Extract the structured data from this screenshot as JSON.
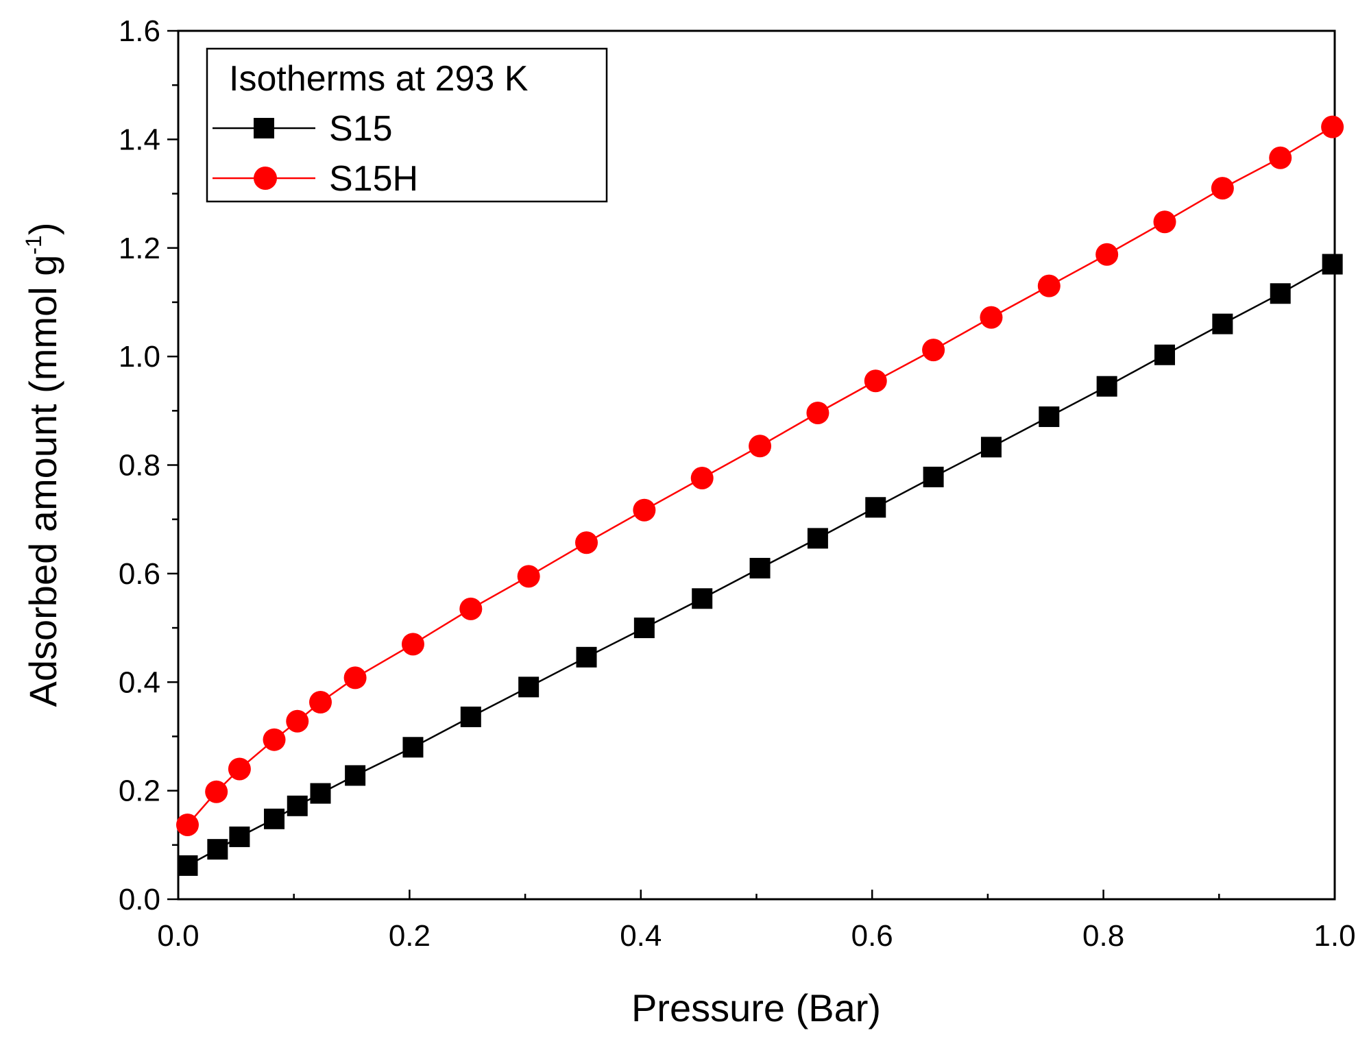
{
  "chart_data": {
    "type": "line",
    "xlabel": "Pressure (Bar)",
    "ylabel_main": "Adsorbed amount (mmol g",
    "ylabel_sup": "-1",
    "ylabel_close": ")",
    "xlim": [
      0.0,
      1.0
    ],
    "ylim": [
      0.0,
      1.6
    ],
    "xticks": [
      "0.0",
      "0.2",
      "0.4",
      "0.6",
      "0.8",
      "1.0"
    ],
    "yticks": [
      "0.0",
      "0.2",
      "0.4",
      "0.6",
      "0.8",
      "1.0",
      "1.2",
      "1.4",
      "1.6"
    ],
    "legend": {
      "title": "Isotherms at 293 K",
      "position": "top-left"
    },
    "series": [
      {
        "name": "S15",
        "color": "#000000",
        "marker": "square",
        "x": [
          0.008,
          0.034,
          0.053,
          0.083,
          0.103,
          0.123,
          0.153,
          0.203,
          0.253,
          0.303,
          0.353,
          0.403,
          0.453,
          0.503,
          0.553,
          0.603,
          0.653,
          0.703,
          0.753,
          0.803,
          0.853,
          0.903,
          0.953,
          0.998
        ],
        "y": [
          0.062,
          0.092,
          0.115,
          0.148,
          0.172,
          0.195,
          0.228,
          0.28,
          0.336,
          0.391,
          0.446,
          0.5,
          0.554,
          0.61,
          0.665,
          0.722,
          0.778,
          0.833,
          0.889,
          0.945,
          1.003,
          1.06,
          1.116,
          1.17
        ]
      },
      {
        "name": "S15H",
        "color": "#ff0000",
        "marker": "circle",
        "x": [
          0.008,
          0.033,
          0.053,
          0.083,
          0.103,
          0.123,
          0.153,
          0.203,
          0.253,
          0.303,
          0.353,
          0.403,
          0.453,
          0.503,
          0.553,
          0.603,
          0.653,
          0.703,
          0.753,
          0.803,
          0.853,
          0.903,
          0.953,
          0.998
        ],
        "y": [
          0.137,
          0.198,
          0.24,
          0.294,
          0.328,
          0.363,
          0.408,
          0.47,
          0.535,
          0.595,
          0.657,
          0.717,
          0.776,
          0.835,
          0.896,
          0.955,
          1.012,
          1.072,
          1.13,
          1.188,
          1.248,
          1.31,
          1.366,
          1.423
        ]
      }
    ]
  }
}
